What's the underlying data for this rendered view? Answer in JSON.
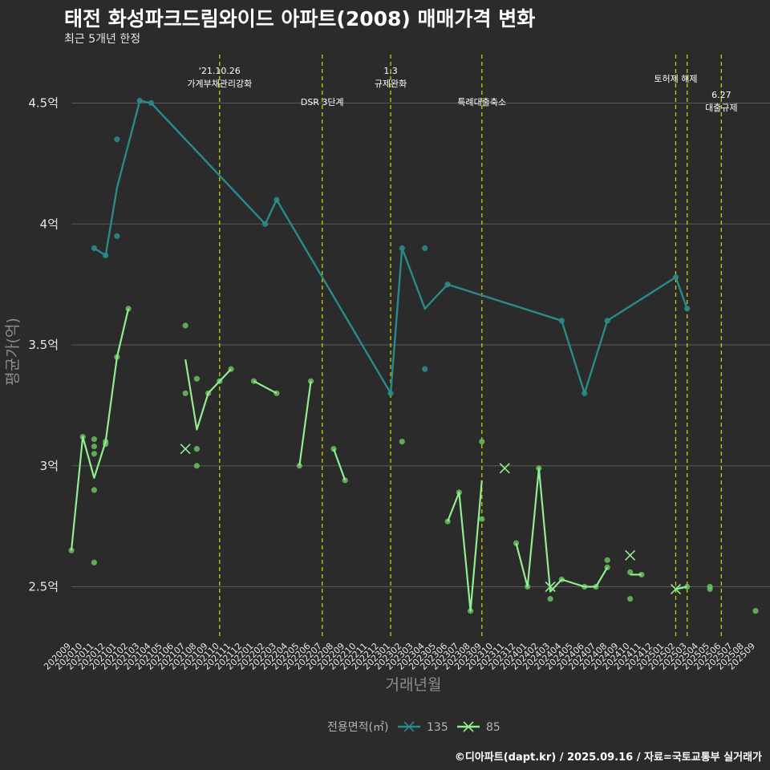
{
  "header": {
    "title": "태전 화성파크드림와이드 아파트(2008) 매매가격 변화",
    "subtitle": "최근 5개년 한정"
  },
  "footer": {
    "caption": "©디아파트(dapt.kr) / 2025.09.16 / 자료=국토교통부 실거래가"
  },
  "colors": {
    "background": "#2b2b2b",
    "grid": "#5a5a5a",
    "event_line": "#cccc00",
    "s135": "#2a8a8a",
    "s85": "#90ee90",
    "scatter85": "#6abf5e"
  },
  "chart_data": {
    "type": "line",
    "xlabel": "거래년월",
    "ylabel": "평균가(억)",
    "ylim": [
      2.3,
      4.7
    ],
    "grid": true,
    "legend_position": "bottom",
    "legend_title": "전용면적(㎡)",
    "x_ticks": [
      "202009",
      "202010",
      "202011",
      "202012",
      "202101",
      "202102",
      "202103",
      "202104",
      "202105",
      "202106",
      "202107",
      "202108",
      "202109",
      "202110",
      "202111",
      "202112",
      "202201",
      "202202",
      "202203",
      "202204",
      "202205",
      "202206",
      "202207",
      "202208",
      "202209",
      "202210",
      "202211",
      "202212",
      "202301",
      "202302",
      "202303",
      "202304",
      "202305",
      "202306",
      "202307",
      "202308",
      "202309",
      "202310",
      "202311",
      "202312",
      "202401",
      "202402",
      "202403",
      "202404",
      "202405",
      "202406",
      "202407",
      "202408",
      "202409",
      "202410",
      "202411",
      "202412",
      "202501",
      "202502",
      "202503",
      "202504",
      "202505",
      "202506",
      "202507",
      "202508",
      "202509"
    ],
    "y_ticks": [
      {
        "value": 2.5,
        "label": "2.5억"
      },
      {
        "value": 3.0,
        "label": "3억"
      },
      {
        "value": 3.5,
        "label": "3.5억"
      },
      {
        "value": 4.0,
        "label": "4억"
      },
      {
        "value": 4.5,
        "label": "4.5억"
      }
    ],
    "events": [
      {
        "x": 13,
        "label_lines": [
          "'21.10.26",
          "가계부채관리강화"
        ]
      },
      {
        "x": 22,
        "label_lines": [
          "DSR 3단계"
        ]
      },
      {
        "x": 28,
        "label_lines": [
          "1.3",
          "규제완화"
        ]
      },
      {
        "x": 36,
        "label_lines": [
          "특례대출축소"
        ]
      },
      {
        "x": 53,
        "label_lines": [
          "토허제 해제"
        ]
      },
      {
        "x": 54,
        "label_lines": []
      },
      {
        "x": 57,
        "label_lines": [
          "6.27",
          "대출규제"
        ]
      }
    ],
    "series": [
      {
        "name": "135",
        "line": [
          [
            2,
            3.9
          ],
          [
            3,
            3.87
          ],
          [
            4,
            4.15
          ],
          [
            6,
            4.51
          ],
          [
            7,
            4.5
          ],
          [
            17,
            4.0
          ],
          [
            18,
            4.1
          ],
          [
            28,
            3.3
          ],
          [
            29,
            3.9
          ],
          [
            31,
            3.65
          ],
          [
            33,
            3.75
          ],
          [
            43,
            3.6
          ],
          [
            45,
            3.3
          ],
          [
            47,
            3.6
          ],
          [
            53,
            3.78
          ],
          [
            54,
            3.65
          ]
        ],
        "points": [
          [
            2,
            3.9
          ],
          [
            3,
            3.87
          ],
          [
            4,
            4.35
          ],
          [
            4,
            3.95
          ],
          [
            6,
            4.51
          ],
          [
            7,
            4.5
          ],
          [
            17,
            4.0
          ],
          [
            18,
            4.1
          ],
          [
            28,
            3.3
          ],
          [
            29,
            3.9
          ],
          [
            31,
            3.9
          ],
          [
            31,
            3.4
          ],
          [
            33,
            3.75
          ],
          [
            43,
            3.6
          ],
          [
            45,
            3.3
          ],
          [
            47,
            3.6
          ],
          [
            53,
            3.78
          ],
          [
            54,
            3.65
          ]
        ],
        "x_marks": []
      },
      {
        "name": "85",
        "line_segments": [
          [
            [
              0,
              2.65
            ],
            [
              1,
              3.12
            ],
            [
              2,
              2.95
            ],
            [
              3,
              3.1
            ],
            [
              4,
              3.45
            ],
            [
              5,
              3.65
            ]
          ],
          [
            [
              10,
              3.44
            ],
            [
              11,
              3.15
            ],
            [
              12,
              3.3
            ],
            [
              13,
              3.35
            ],
            [
              14,
              3.4
            ]
          ],
          [
            [
              16,
              3.35
            ],
            [
              18,
              3.3
            ]
          ],
          [
            [
              20,
              3.0
            ],
            [
              21,
              3.35
            ]
          ],
          [
            [
              23,
              3.07
            ],
            [
              24,
              2.94
            ]
          ],
          [
            [
              33,
              2.77
            ],
            [
              34,
              2.89
            ],
            [
              35,
              2.4
            ],
            [
              36,
              2.94
            ]
          ],
          [
            [
              39,
              2.68
            ],
            [
              40,
              2.5
            ],
            [
              41,
              2.99
            ],
            [
              42,
              2.48
            ],
            [
              43,
              2.53
            ],
            [
              45,
              2.5
            ],
            [
              46,
              2.5
            ],
            [
              47,
              2.58
            ]
          ],
          [
            [
              49,
              2.55
            ],
            [
              50,
              2.55
            ]
          ],
          [
            [
              53,
              2.49
            ],
            [
              54,
              2.5
            ]
          ]
        ],
        "points": [
          [
            0,
            2.65
          ],
          [
            1,
            3.12
          ],
          [
            2,
            3.11
          ],
          [
            2,
            3.08
          ],
          [
            2,
            3.05
          ],
          [
            2,
            2.9
          ],
          [
            2,
            2.6
          ],
          [
            3,
            3.1
          ],
          [
            3,
            3.09
          ],
          [
            4,
            3.45
          ],
          [
            5,
            3.65
          ],
          [
            10,
            3.58
          ],
          [
            10,
            3.3
          ],
          [
            11,
            3.36
          ],
          [
            11,
            3.07
          ],
          [
            11,
            3.0
          ],
          [
            12,
            3.3
          ],
          [
            13,
            3.35
          ],
          [
            14,
            3.4
          ],
          [
            16,
            3.35
          ],
          [
            18,
            3.3
          ],
          [
            20,
            3.0
          ],
          [
            21,
            3.35
          ],
          [
            23,
            3.07
          ],
          [
            24,
            2.94
          ],
          [
            29,
            3.1
          ],
          [
            33,
            2.77
          ],
          [
            34,
            2.89
          ],
          [
            35,
            2.4
          ],
          [
            36,
            3.1
          ],
          [
            36,
            2.78
          ],
          [
            39,
            2.68
          ],
          [
            40,
            2.5
          ],
          [
            41,
            2.99
          ],
          [
            42,
            2.45
          ],
          [
            43,
            2.53
          ],
          [
            45,
            2.5
          ],
          [
            46,
            2.5
          ],
          [
            47,
            2.61
          ],
          [
            47,
            2.58
          ],
          [
            49,
            2.56
          ],
          [
            49,
            2.45
          ],
          [
            50,
            2.55
          ],
          [
            54,
            2.5
          ],
          [
            56,
            2.5
          ],
          [
            56,
            2.49
          ],
          [
            60,
            2.4
          ]
        ],
        "x_marks": [
          [
            10,
            3.07
          ],
          [
            38,
            2.99
          ],
          [
            42,
            2.5
          ],
          [
            49,
            2.63
          ],
          [
            53,
            2.49
          ]
        ]
      }
    ]
  }
}
